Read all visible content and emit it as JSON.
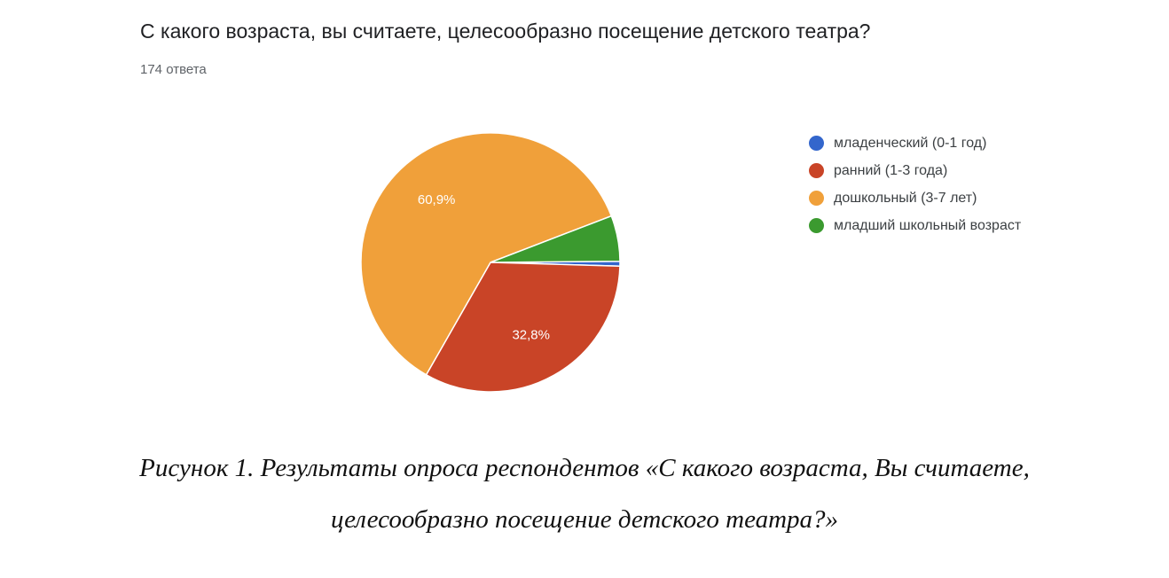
{
  "chart_data": {
    "type": "pie",
    "title": "С какого возраста, вы считаете, целесообразно посещение детского театра?",
    "subtitle": "174 ответа",
    "categories": [
      "младенческий (0-1 год)",
      "ранний (1-3 года)",
      "дошкольный (3-7 лет)",
      "младший школьный возраст"
    ],
    "values": [
      0.6,
      32.8,
      60.9,
      5.7
    ],
    "data_labels": [
      "",
      "32,8%",
      "60,9%",
      ""
    ],
    "colors": [
      "#3366cc",
      "#c94427",
      "#f0a03a",
      "#3b9a2f"
    ],
    "legend_position": "right"
  },
  "caption": {
    "line1": "Рисунок 1. Результаты опроса респондентов «С какого возраста, Вы считаете,",
    "line2": "целесообразно посещение детского театра?»"
  }
}
